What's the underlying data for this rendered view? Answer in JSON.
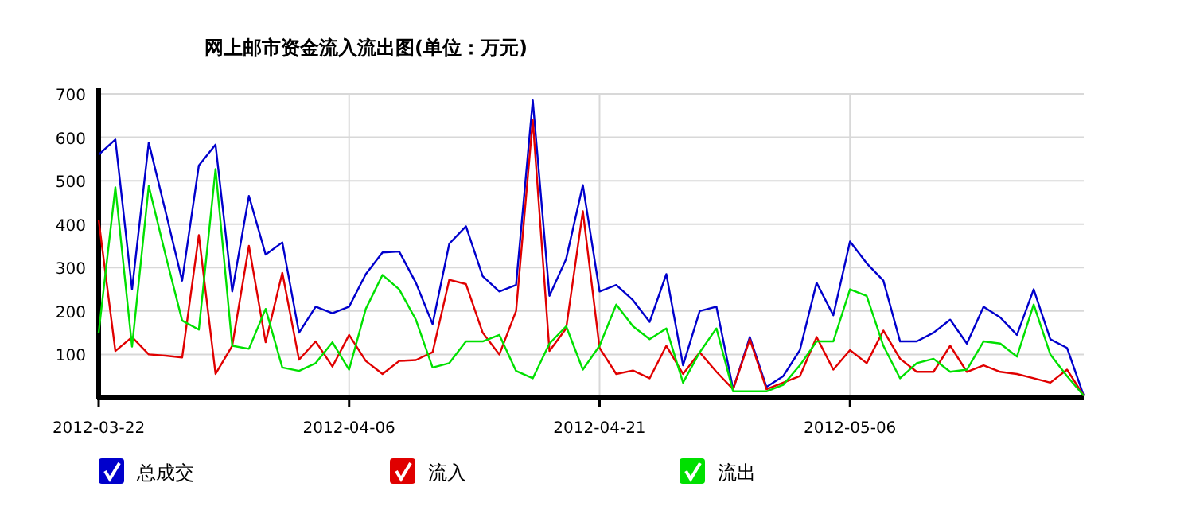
{
  "chart_data": {
    "type": "line",
    "title": "网上邮市资金流入流出图(单位：万元)",
    "x": [
      "2012-03-22",
      "2012-03-23",
      "2012-03-24",
      "2012-03-25",
      "2012-03-26",
      "2012-03-27",
      "2012-03-28",
      "2012-03-29",
      "2012-03-30",
      "2012-03-31",
      "2012-04-01",
      "2012-04-02",
      "2012-04-03",
      "2012-04-04",
      "2012-04-05",
      "2012-04-06",
      "2012-04-07",
      "2012-04-08",
      "2012-04-09",
      "2012-04-10",
      "2012-04-11",
      "2012-04-12",
      "2012-04-13",
      "2012-04-14",
      "2012-04-15",
      "2012-04-16",
      "2012-04-17",
      "2012-04-18",
      "2012-04-19",
      "2012-04-20",
      "2012-04-21",
      "2012-04-22",
      "2012-04-23",
      "2012-04-24",
      "2012-04-25",
      "2012-04-26",
      "2012-04-27",
      "2012-04-28",
      "2012-04-29",
      "2012-04-30",
      "2012-05-01",
      "2012-05-02",
      "2012-05-03",
      "2012-05-04",
      "2012-05-05",
      "2012-05-06",
      "2012-05-07",
      "2012-05-08",
      "2012-05-09",
      "2012-05-10",
      "2012-05-11",
      "2012-05-12",
      "2012-05-13",
      "2012-05-14",
      "2012-05-15",
      "2012-05-16",
      "2012-05-17",
      "2012-05-18",
      "2012-05-19",
      "2012-05-20"
    ],
    "series": [
      {
        "name": "总成交",
        "color": "#0000cc",
        "values": [
          560,
          595,
          250,
          588,
          430,
          270,
          535,
          583,
          245,
          465,
          330,
          358,
          150,
          210,
          195,
          210,
          285,
          335,
          337,
          265,
          170,
          355,
          395,
          280,
          245,
          260,
          685,
          235,
          320,
          490,
          245,
          260,
          225,
          175,
          285,
          75,
          200,
          210,
          20,
          140,
          25,
          50,
          110,
          265,
          190,
          360,
          310,
          270,
          130,
          130,
          150,
          180,
          125,
          210,
          185,
          145,
          250,
          135,
          115,
          5
        ]
      },
      {
        "name": "流入",
        "color": "#e00000",
        "values": [
          410,
          108,
          140,
          100,
          97,
          93,
          375,
          55,
          120,
          350,
          128,
          288,
          88,
          130,
          72,
          145,
          85,
          55,
          85,
          87,
          105,
          272,
          262,
          150,
          100,
          200,
          640,
          108,
          160,
          430,
          115,
          55,
          63,
          45,
          120,
          55,
          105,
          60,
          20,
          135,
          20,
          35,
          50,
          140,
          65,
          110,
          80,
          155,
          90,
          60,
          60,
          120,
          60,
          75,
          60,
          55,
          45,
          35,
          65,
          5
        ]
      },
      {
        "name": "流出",
        "color": "#00e000",
        "values": [
          150,
          485,
          118,
          488,
          330,
          178,
          157,
          527,
          120,
          113,
          205,
          70,
          62,
          80,
          128,
          65,
          205,
          283,
          250,
          180,
          70,
          80,
          130,
          130,
          145,
          62,
          45,
          125,
          165,
          65,
          120,
          215,
          165,
          135,
          160,
          35,
          105,
          160,
          15,
          15,
          15,
          30,
          75,
          130,
          130,
          250,
          235,
          120,
          45,
          80,
          90,
          60,
          65,
          130,
          125,
          95,
          215,
          100,
          50,
          5
        ]
      }
    ],
    "xlim": [
      "2012-03-22",
      "2012-05-20"
    ],
    "xticks": [
      {
        "value": "2012-03-22",
        "label": "2012-03-22"
      },
      {
        "value": "2012-04-06",
        "label": "2012-04-06"
      },
      {
        "value": "2012-04-21",
        "label": "2012-04-21"
      },
      {
        "value": "2012-05-06",
        "label": "2012-05-06"
      }
    ],
    "ylim": [
      0,
      700
    ],
    "yticks": [
      100,
      200,
      300,
      400,
      500,
      600,
      700
    ],
    "grid": true,
    "legend": "bottom",
    "marker": "none",
    "line_style": "solid"
  }
}
